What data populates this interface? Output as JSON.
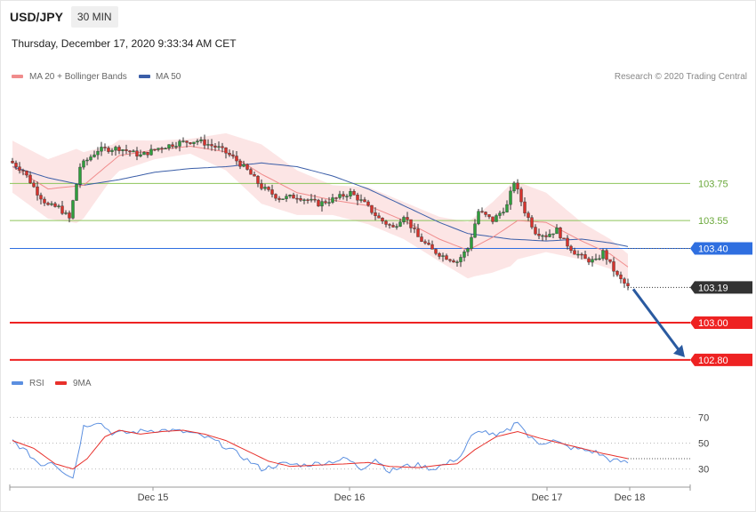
{
  "header": {
    "symbol": "USD/JPY",
    "timeframe": "30 MIN"
  },
  "timestamp": "Thursday, December 17, 2020 9:33:34 AM CET",
  "copyright": "Research © 2020 Trading Central",
  "legend_main": [
    {
      "label": "MA 20 + Bollinger Bands",
      "color": "#f08c8c"
    },
    {
      "label": "MA 50",
      "color": "#3b5ea8"
    }
  ],
  "legend_rsi": [
    {
      "label": "RSI",
      "color": "#5b8fe0"
    },
    {
      "label": "9MA",
      "color": "#e8302b"
    }
  ],
  "chart_data": [
    {
      "type": "candlestick",
      "xlabels": [
        "Dec 15",
        "Dec 16",
        "Dec 17",
        "Dec 18"
      ],
      "price_range": [
        102.78,
        104.12
      ],
      "current_price": 103.19,
      "levels": [
        {
          "value": 103.75,
          "kind": "resistance",
          "color": "#8dc55a"
        },
        {
          "value": 103.55,
          "kind": "resistance",
          "color": "#8dc55a"
        },
        {
          "value": 103.4,
          "kind": "pivot",
          "color": "#2f6fe0"
        },
        {
          "value": 103.19,
          "kind": "last",
          "color": "#333333"
        },
        {
          "value": 103.0,
          "kind": "support",
          "color": "#ee2222"
        },
        {
          "value": 102.8,
          "kind": "support",
          "color": "#ee2222"
        }
      ],
      "forecast_arrow": {
        "from": 103.19,
        "to": 102.8,
        "color": "#2a5aa0"
      },
      "close_keypoints": [
        [
          0,
          103.86
        ],
        [
          3,
          103.82
        ],
        [
          7,
          103.7
        ],
        [
          10,
          103.63
        ],
        [
          13,
          103.62
        ],
        [
          16,
          103.56
        ],
        [
          19,
          103.84
        ],
        [
          24,
          103.93
        ],
        [
          30,
          103.94
        ],
        [
          36,
          103.9
        ],
        [
          41,
          103.94
        ],
        [
          47,
          103.97
        ],
        [
          52,
          103.98
        ],
        [
          58,
          103.94
        ],
        [
          62,
          103.89
        ],
        [
          66,
          103.82
        ],
        [
          70,
          103.73
        ],
        [
          75,
          103.67
        ],
        [
          80,
          103.68
        ],
        [
          86,
          103.64
        ],
        [
          91,
          103.67
        ],
        [
          95,
          103.7
        ],
        [
          99,
          103.64
        ],
        [
          103,
          103.56
        ],
        [
          107,
          103.51
        ],
        [
          110,
          103.58
        ],
        [
          114,
          103.46
        ],
        [
          118,
          103.39
        ],
        [
          121,
          103.36
        ],
        [
          125,
          103.33
        ],
        [
          128,
          103.4
        ],
        [
          131,
          103.6
        ],
        [
          135,
          103.55
        ],
        [
          139,
          103.63
        ],
        [
          141,
          103.76
        ],
        [
          144,
          103.6
        ],
        [
          147,
          103.49
        ],
        [
          150,
          103.47
        ],
        [
          153,
          103.5
        ],
        [
          155,
          103.44
        ],
        [
          158,
          103.38
        ],
        [
          161,
          103.34
        ],
        [
          164,
          103.33
        ],
        [
          166,
          103.38
        ],
        [
          170,
          103.25
        ],
        [
          173,
          103.19
        ]
      ],
      "ma20_keypoints": [
        [
          0,
          103.84
        ],
        [
          10,
          103.72
        ],
        [
          20,
          103.74
        ],
        [
          30,
          103.9
        ],
        [
          40,
          103.93
        ],
        [
          50,
          103.95
        ],
        [
          60,
          103.92
        ],
        [
          70,
          103.8
        ],
        [
          80,
          103.7
        ],
        [
          90,
          103.66
        ],
        [
          100,
          103.63
        ],
        [
          110,
          103.55
        ],
        [
          120,
          103.45
        ],
        [
          128,
          103.39
        ],
        [
          135,
          103.46
        ],
        [
          142,
          103.55
        ],
        [
          150,
          103.54
        ],
        [
          160,
          103.44
        ],
        [
          168,
          103.37
        ],
        [
          173,
          103.3
        ]
      ],
      "ma50_keypoints": [
        [
          0,
          103.84
        ],
        [
          10,
          103.78
        ],
        [
          20,
          103.74
        ],
        [
          30,
          103.77
        ],
        [
          40,
          103.81
        ],
        [
          50,
          103.83
        ],
        [
          60,
          103.84
        ],
        [
          70,
          103.86
        ],
        [
          80,
          103.84
        ],
        [
          90,
          103.79
        ],
        [
          100,
          103.72
        ],
        [
          110,
          103.63
        ],
        [
          120,
          103.54
        ],
        [
          128,
          103.48
        ],
        [
          140,
          103.45
        ],
        [
          150,
          103.44
        ],
        [
          160,
          103.45
        ],
        [
          168,
          103.43
        ],
        [
          173,
          103.41
        ]
      ],
      "band_halfwidth_keypoints": [
        [
          0,
          0.14
        ],
        [
          10,
          0.16
        ],
        [
          18,
          0.2
        ],
        [
          28,
          0.09
        ],
        [
          40,
          0.05
        ],
        [
          50,
          0.04
        ],
        [
          60,
          0.1
        ],
        [
          70,
          0.16
        ],
        [
          80,
          0.12
        ],
        [
          90,
          0.08
        ],
        [
          100,
          0.1
        ],
        [
          110,
          0.1
        ],
        [
          120,
          0.12
        ],
        [
          130,
          0.16
        ],
        [
          140,
          0.22
        ],
        [
          150,
          0.16
        ],
        [
          160,
          0.1
        ],
        [
          168,
          0.08
        ],
        [
          173,
          0.07
        ]
      ]
    },
    {
      "type": "line",
      "title": "RSI",
      "yticks": [
        30,
        50,
        70
      ],
      "yrange": [
        18,
        80
      ],
      "series": [
        {
          "name": "RSI",
          "color": "#5b8fe0",
          "keypoints": [
            [
              0,
              52
            ],
            [
              4,
              43
            ],
            [
              8,
              33
            ],
            [
              11,
              36
            ],
            [
              14,
              29
            ],
            [
              17,
              23
            ],
            [
              20,
              63
            ],
            [
              24,
              67
            ],
            [
              28,
              58
            ],
            [
              33,
              58
            ],
            [
              38,
              60
            ],
            [
              44,
              60
            ],
            [
              50,
              58
            ],
            [
              56,
              53
            ],
            [
              62,
              44
            ],
            [
              66,
              37
            ],
            [
              70,
              30
            ],
            [
              76,
              34
            ],
            [
              82,
              33
            ],
            [
              88,
              35
            ],
            [
              94,
              38
            ],
            [
              98,
              30
            ],
            [
              102,
              38
            ],
            [
              106,
              28
            ],
            [
              110,
              32
            ],
            [
              114,
              33
            ],
            [
              118,
              30
            ],
            [
              122,
              34
            ],
            [
              126,
              40
            ],
            [
              129,
              55
            ],
            [
              132,
              60
            ],
            [
              136,
              55
            ],
            [
              140,
              61
            ],
            [
              142,
              68
            ],
            [
              145,
              55
            ],
            [
              148,
              50
            ],
            [
              152,
              52
            ],
            [
              156,
              47
            ],
            [
              160,
              45
            ],
            [
              164,
              43
            ],
            [
              168,
              37
            ],
            [
              173,
              35
            ]
          ]
        },
        {
          "name": "9MA",
          "color": "#e8302b",
          "keypoints": [
            [
              0,
              52
            ],
            [
              6,
              46
            ],
            [
              12,
              34
            ],
            [
              17,
              30
            ],
            [
              21,
              38
            ],
            [
              26,
              55
            ],
            [
              30,
              60
            ],
            [
              36,
              57
            ],
            [
              42,
              59
            ],
            [
              48,
              60
            ],
            [
              54,
              57
            ],
            [
              60,
              52
            ],
            [
              66,
              44
            ],
            [
              72,
              36
            ],
            [
              78,
              32
            ],
            [
              86,
              33
            ],
            [
              94,
              34
            ],
            [
              100,
              35
            ],
            [
              106,
              32
            ],
            [
              114,
              31
            ],
            [
              120,
              33
            ],
            [
              125,
              34
            ],
            [
              130,
              45
            ],
            [
              136,
              55
            ],
            [
              142,
              59
            ],
            [
              148,
              54
            ],
            [
              154,
              50
            ],
            [
              160,
              46
            ],
            [
              166,
              42
            ],
            [
              173,
              38
            ]
          ]
        }
      ]
    }
  ]
}
